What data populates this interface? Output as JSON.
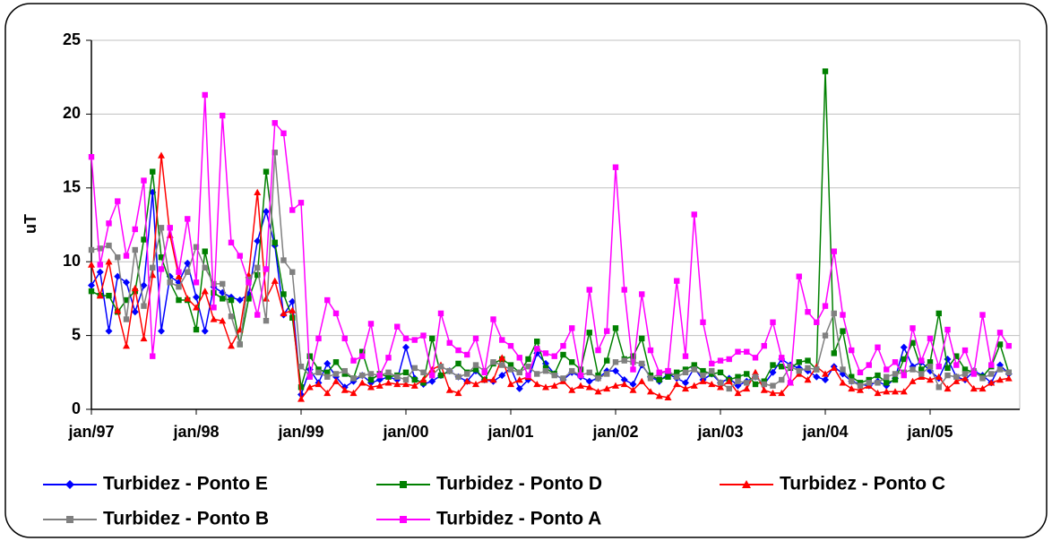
{
  "chart_data": {
    "type": "line",
    "y_label": "uT",
    "categories": [
      "jan/97",
      null,
      null,
      null,
      null,
      null,
      null,
      null,
      null,
      null,
      null,
      null,
      "jan/98",
      null,
      null,
      null,
      null,
      null,
      null,
      null,
      null,
      null,
      null,
      null,
      "jan/99",
      null,
      null,
      null,
      null,
      null,
      null,
      null,
      null,
      null,
      null,
      null,
      "jan/00",
      null,
      null,
      null,
      null,
      null,
      null,
      null,
      null,
      null,
      null,
      null,
      "jan/01",
      null,
      null,
      null,
      null,
      null,
      null,
      null,
      null,
      null,
      null,
      null,
      "jan/02",
      null,
      null,
      null,
      null,
      null,
      null,
      null,
      null,
      null,
      null,
      null,
      "jan/03",
      null,
      null,
      null,
      null,
      null,
      null,
      null,
      null,
      null,
      null,
      null,
      "jan/04",
      null,
      null,
      null,
      null,
      null,
      null,
      null,
      null,
      null,
      null,
      null,
      "jan/05",
      null,
      null,
      null,
      null,
      null,
      null,
      null,
      null,
      null
    ],
    "ylim": [
      0,
      25
    ],
    "yticks": [
      0,
      5,
      10,
      15,
      20,
      25
    ],
    "grid": true,
    "series": [
      {
        "name": "Turbidez - Ponto E",
        "color": "#0000ff",
        "marker": "diamond",
        "values": [
          8.4,
          9.3,
          5.3,
          9.0,
          8.6,
          6.6,
          8.4,
          14.7,
          5.3,
          9.0,
          8.6,
          9.9,
          7.6,
          5.3,
          8.3,
          7.9,
          7.6,
          7.4,
          7.8,
          11.4,
          13.4,
          11.1,
          6.4,
          7.3,
          1.0,
          2.7,
          1.8,
          3.1,
          2.2,
          1.5,
          1.9,
          2.3,
          1.8,
          2.0,
          2.2,
          2.0,
          4.2,
          2.1,
          1.7,
          1.9,
          2.3,
          2.6,
          2.2,
          1.9,
          2.6,
          2.0,
          1.9,
          2.3,
          2.8,
          1.4,
          2.0,
          3.8,
          3.1,
          2.4,
          2.0,
          2.5,
          2.2,
          1.9,
          2.1,
          2.6,
          2.6,
          2.0,
          1.7,
          3.0,
          2.2,
          1.9,
          2.4,
          2.1,
          1.8,
          2.8,
          2.0,
          2.4,
          1.8,
          2.1,
          1.6,
          1.9,
          2.2,
          1.7,
          2.5,
          3.4,
          3.0,
          2.8,
          2.6,
          2.2,
          2.0,
          2.9,
          2.4,
          1.9,
          1.7,
          1.6,
          1.9,
          1.6,
          2.1,
          4.2,
          2.9,
          3.2,
          2.6,
          2.1,
          3.4,
          2.2,
          2.0,
          2.6,
          2.3,
          1.8,
          3.0,
          2.4
        ]
      },
      {
        "name": "Turbidez - Ponto D",
        "color": "#008000",
        "marker": "square",
        "values": [
          8.0,
          7.7,
          7.7,
          6.6,
          7.4,
          8.0,
          11.5,
          16.1,
          10.3,
          8.6,
          7.4,
          7.4,
          5.4,
          10.7,
          7.9,
          7.5,
          7.4,
          4.4,
          7.5,
          9.1,
          16.1,
          11.3,
          7.8,
          6.2,
          1.5,
          3.6,
          2.7,
          2.5,
          3.2,
          2.4,
          2.1,
          3.9,
          2.0,
          2.4,
          2.2,
          2.3,
          2.5,
          2.0,
          1.8,
          4.8,
          2.3,
          2.6,
          3.1,
          2.5,
          2.7,
          2.0,
          3.1,
          3.4,
          3.0,
          2.5,
          3.4,
          4.6,
          2.8,
          2.4,
          3.7,
          3.2,
          2.7,
          5.2,
          2.3,
          3.3,
          5.5,
          3.4,
          3.6,
          4.8,
          2.3,
          2.0,
          2.2,
          2.5,
          2.7,
          3.0,
          2.6,
          2.4,
          2.5,
          2.0,
          2.2,
          2.4,
          1.7,
          1.9,
          3.0,
          2.9,
          2.8,
          3.2,
          3.3,
          2.7,
          22.9,
          3.8,
          5.3,
          2.2,
          1.8,
          2.0,
          2.3,
          1.8,
          2.0,
          3.4,
          4.5,
          2.7,
          3.2,
          6.5,
          2.8,
          3.6,
          2.7,
          2.5,
          2.2,
          2.9,
          4.4,
          2.5
        ]
      },
      {
        "name": "Turbidez - Ponto C",
        "color": "#ff0000",
        "marker": "triangle",
        "values": [
          9.8,
          7.7,
          10.0,
          6.7,
          4.3,
          8.2,
          4.8,
          9.1,
          17.2,
          11.8,
          9.0,
          7.5,
          6.9,
          8.0,
          6.1,
          6.0,
          4.3,
          5.4,
          9.1,
          14.7,
          7.5,
          8.7,
          6.5,
          6.7,
          0.7,
          1.5,
          1.7,
          1.1,
          1.9,
          1.3,
          1.1,
          1.8,
          1.5,
          1.6,
          1.8,
          1.7,
          1.7,
          1.6,
          2.0,
          2.7,
          3.0,
          1.3,
          1.1,
          1.9,
          1.7,
          2.0,
          2.0,
          3.5,
          1.7,
          2.0,
          2.2,
          1.7,
          1.5,
          1.6,
          1.9,
          1.3,
          1.6,
          1.5,
          1.2,
          1.4,
          1.6,
          1.7,
          1.3,
          1.9,
          1.2,
          0.9,
          0.8,
          1.7,
          1.4,
          1.6,
          1.9,
          1.7,
          1.5,
          1.9,
          1.1,
          1.4,
          2.5,
          1.3,
          1.1,
          1.1,
          1.8,
          2.4,
          2.0,
          2.9,
          2.4,
          2.8,
          1.8,
          1.4,
          1.3,
          1.6,
          1.1,
          1.2,
          1.2,
          1.2,
          1.9,
          2.2,
          2.0,
          2.2,
          1.4,
          1.9,
          2.1,
          1.4,
          1.4,
          1.8,
          2.0,
          2.1
        ]
      },
      {
        "name": "Turbidez - Ponto B",
        "color": "#808080",
        "marker": "square",
        "values": [
          10.8,
          10.9,
          11.1,
          10.3,
          6.1,
          10.8,
          7.0,
          9.6,
          12.3,
          8.6,
          8.3,
          9.3,
          11.0,
          9.6,
          8.5,
          8.5,
          6.3,
          4.4,
          8.8,
          9.6,
          6.0,
          17.4,
          10.1,
          9.3,
          2.9,
          2.3,
          2.5,
          2.2,
          2.4,
          2.6,
          2.1,
          2.3,
          2.4,
          2.3,
          2.5,
          2.2,
          2.0,
          2.8,
          2.5,
          2.3,
          2.9,
          2.6,
          2.2,
          2.4,
          3.0,
          2.6,
          3.2,
          3.0,
          2.7,
          2.5,
          2.9,
          2.4,
          2.6,
          2.3,
          2.1,
          2.6,
          2.3,
          2.5,
          2.1,
          2.4,
          3.2,
          3.3,
          3.2,
          3.1,
          2.1,
          2.4,
          2.6,
          2.2,
          2.5,
          2.7,
          2.3,
          2.6,
          1.8,
          1.4,
          1.9,
          1.8,
          2.2,
          1.7,
          1.6,
          2.0,
          2.9,
          2.6,
          2.8,
          2.7,
          5.0,
          6.5,
          2.7,
          1.9,
          1.6,
          1.8,
          1.8,
          2.2,
          2.4,
          2.5,
          2.7,
          2.4,
          2.9,
          1.5,
          2.3,
          2.2,
          2.4,
          2.6,
          2.1,
          2.4,
          2.7,
          2.5
        ]
      },
      {
        "name": "Turbidez - Ponto A",
        "color": "#ff00ff",
        "marker": "square",
        "values": [
          17.1,
          9.8,
          12.6,
          14.1,
          10.4,
          12.2,
          15.5,
          3.6,
          9.5,
          12.3,
          9.3,
          12.9,
          8.6,
          21.3,
          6.9,
          19.9,
          11.3,
          10.4,
          8.6,
          6.4,
          9.5,
          19.4,
          18.7,
          13.5,
          14.0,
          2.2,
          4.8,
          7.4,
          6.5,
          4.8,
          3.3,
          3.6,
          5.8,
          2.3,
          3.5,
          5.6,
          4.8,
          4.7,
          5.0,
          2.3,
          6.5,
          4.5,
          4.0,
          3.7,
          4.8,
          2.5,
          6.1,
          4.7,
          4.3,
          3.5,
          2.3,
          4.1,
          3.8,
          3.6,
          4.3,
          5.5,
          2.3,
          8.1,
          4.0,
          5.3,
          16.4,
          8.1,
          2.7,
          7.8,
          4.0,
          2.5,
          2.6,
          8.7,
          3.6,
          13.2,
          5.9,
          3.1,
          3.3,
          3.4,
          3.9,
          3.9,
          3.5,
          4.3,
          5.9,
          3.5,
          1.8,
          9.0,
          6.6,
          5.9,
          7.0,
          10.7,
          6.4,
          4.0,
          2.5,
          3.0,
          4.2,
          2.7,
          3.2,
          2.3,
          5.5,
          3.3,
          4.8,
          2.9,
          5.4,
          3.0,
          4.0,
          2.4,
          6.4,
          3.0,
          5.2,
          4.3
        ]
      }
    ]
  }
}
